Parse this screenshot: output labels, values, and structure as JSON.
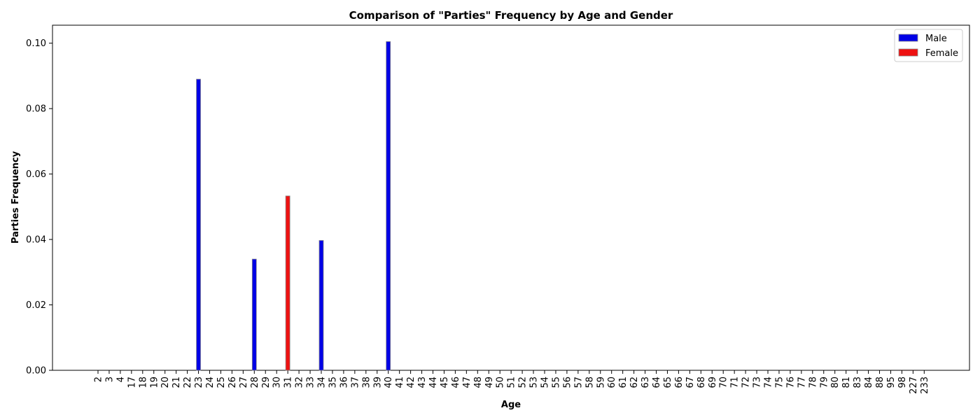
{
  "chart_data": {
    "type": "bar",
    "title": "Comparison of \"Parties\" Frequency by Age and Gender",
    "xlabel": "Age",
    "ylabel": "Parties Frequency",
    "ylim": [
      0,
      0.1055
    ],
    "yticks": [
      "0.00",
      "0.02",
      "0.04",
      "0.06",
      "0.08",
      "0.10"
    ],
    "ytick_values": [
      0,
      0.02,
      0.04,
      0.06,
      0.08,
      0.1
    ],
    "grid": false,
    "legend_position": "top-right",
    "categories": [
      "2",
      "3",
      "4",
      "17",
      "18",
      "19",
      "20",
      "21",
      "22",
      "23",
      "24",
      "25",
      "26",
      "27",
      "28",
      "29",
      "30",
      "31",
      "32",
      "33",
      "34",
      "35",
      "36",
      "37",
      "38",
      "39",
      "40",
      "41",
      "42",
      "43",
      "44",
      "45",
      "46",
      "47",
      "48",
      "49",
      "50",
      "51",
      "52",
      "53",
      "54",
      "55",
      "56",
      "57",
      "58",
      "59",
      "60",
      "61",
      "62",
      "63",
      "64",
      "65",
      "66",
      "67",
      "68",
      "69",
      "70",
      "71",
      "72",
      "73",
      "74",
      "75",
      "76",
      "77",
      "78",
      "79",
      "80",
      "81",
      "83",
      "84",
      "88",
      "95",
      "98",
      "227",
      "233"
    ],
    "series": [
      {
        "name": "Male",
        "color": "#0000e6",
        "values": [
          0,
          0,
          0,
          0,
          0,
          0,
          0,
          0,
          0,
          0.089,
          0,
          0,
          0,
          0,
          0.034,
          0,
          0,
          0,
          0,
          0,
          0.0397,
          0,
          0,
          0,
          0,
          0,
          0.1005,
          0,
          0,
          0,
          0,
          0,
          0,
          0,
          0,
          0,
          0,
          0,
          0,
          0,
          0,
          0,
          0,
          0,
          0,
          0,
          0,
          0,
          0,
          0,
          0,
          0,
          0,
          0,
          0,
          0,
          0,
          0,
          0,
          0,
          0,
          0,
          0,
          0,
          0,
          0,
          0,
          0,
          0,
          0,
          0,
          0,
          0,
          0,
          0
        ]
      },
      {
        "name": "Female",
        "color": "#ee1111",
        "values": [
          0,
          0,
          0,
          0,
          0,
          0,
          0,
          0,
          0,
          0,
          0,
          0,
          0,
          0,
          0,
          0,
          0,
          0.0533,
          0,
          0,
          0,
          0,
          0,
          0,
          0,
          0,
          0,
          0,
          0,
          0,
          0,
          0,
          0,
          0,
          0,
          0,
          0,
          0,
          0,
          0,
          0,
          0,
          0,
          0,
          0,
          0,
          0,
          0,
          0,
          0,
          0,
          0,
          0,
          0,
          0,
          0,
          0,
          0,
          0,
          0,
          0,
          0,
          0,
          0,
          0,
          0,
          0,
          0,
          0,
          0,
          0,
          0,
          0,
          0,
          0
        ]
      }
    ]
  }
}
